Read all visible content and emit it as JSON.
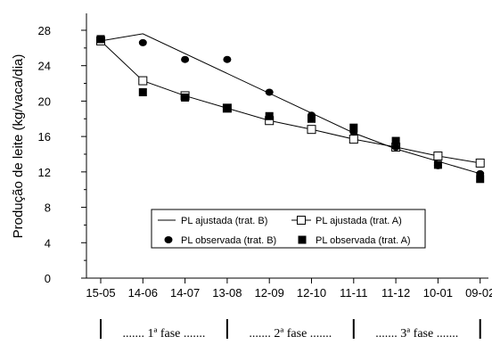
{
  "chart_data": {
    "type": "line",
    "ylabel": "Produção de leite (kg/vaca/dia)",
    "xlabel": "",
    "ylim": [
      0,
      28
    ],
    "yticks": [
      0,
      4,
      8,
      12,
      16,
      20,
      24,
      28
    ],
    "categories": [
      "15-05",
      "14-06",
      "14-07",
      "13-08",
      "12-09",
      "12-10",
      "11-11",
      "11-12",
      "10-01",
      "09-02"
    ],
    "series": [
      {
        "name": "PL ajustada (trat. B)",
        "style": "line",
        "x": [
          0,
          1,
          6,
          7,
          9
        ],
        "values": [
          26.8,
          27.6,
          16.4,
          14.6,
          11.8
        ]
      },
      {
        "name": "PL ajustada (trat. A)",
        "style": "line-open-square",
        "x": [
          0,
          1,
          2,
          3,
          4,
          5,
          6,
          7,
          8,
          9
        ],
        "values": [
          26.8,
          22.3,
          20.6,
          19.2,
          17.8,
          16.8,
          15.7,
          14.8,
          13.8,
          13.0
        ]
      },
      {
        "name": "PL observada (trat. B)",
        "style": "filled-circle",
        "x": [
          0,
          1,
          2,
          3,
          4,
          5,
          6,
          7,
          8,
          9
        ],
        "values": [
          27.0,
          26.6,
          24.7,
          24.7,
          21.0,
          18.4,
          16.5,
          14.8,
          12.7,
          11.8
        ]
      },
      {
        "name": "PL observada (trat. A)",
        "style": "filled-square",
        "x": [
          0,
          1,
          2,
          3,
          4,
          5,
          6,
          7,
          8,
          9
        ],
        "values": [
          27.0,
          21.0,
          20.4,
          19.2,
          18.3,
          18.0,
          17.0,
          15.5,
          12.8,
          11.2
        ]
      }
    ],
    "legend_position": "inside-bottom-center",
    "grid": false,
    "phases": [
      {
        "label": "....... 1ª fase .......",
        "from": 0,
        "to": 3
      },
      {
        "label": "....... 2ª fase .......",
        "from": 3,
        "to": 6
      },
      {
        "label": "....... 3ª fase .......",
        "from": 6,
        "to": 9
      }
    ]
  }
}
